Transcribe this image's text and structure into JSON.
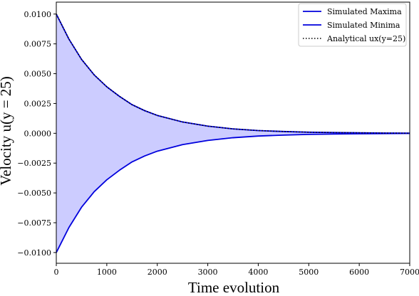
{
  "chart_data": {
    "type": "line",
    "xlabel": "Time evolution",
    "ylabel": "Velocity u(y = 25)",
    "xlim": [
      0,
      7000
    ],
    "ylim": [
      -0.0109,
      0.011
    ],
    "x_ticks": [
      0,
      1000,
      2000,
      3000,
      4000,
      5000,
      6000,
      7000
    ],
    "x_tick_labels": [
      "0",
      "1000",
      "2000",
      "3000",
      "4000",
      "5000",
      "6000",
      "7000"
    ],
    "y_ticks": [
      -0.01,
      -0.0075,
      -0.005,
      -0.0025,
      0,
      0.0025,
      0.005,
      0.0075,
      0.01
    ],
    "y_tick_labels": [
      "−0.0100",
      "−0.0075",
      "−0.0050",
      "−0.0025",
      "0.0000",
      "0.0025",
      "0.0050",
      "0.0075",
      "0.0100"
    ],
    "grid": false,
    "legend_position": "top-right",
    "fill_between": {
      "upper": "Simulated Maxima",
      "lower": "Simulated Minima",
      "color": "#ccccff"
    },
    "series": [
      {
        "name": "Simulated Maxima",
        "color": "#0000dd",
        "style": "solid",
        "x": [
          0,
          250,
          500,
          750,
          1000,
          1250,
          1500,
          1750,
          2000,
          2500,
          3000,
          3500,
          4000,
          4500,
          5000,
          5500,
          6000,
          6500,
          7000
        ],
        "values": [
          0.01,
          0.0079,
          0.0062,
          0.0049,
          0.0039,
          0.0031,
          0.0024,
          0.0019,
          0.0015,
          0.00095,
          0.0006,
          0.00037,
          0.00023,
          0.00015,
          9e-05,
          6e-05,
          4e-05,
          2e-05,
          1e-05
        ]
      },
      {
        "name": "Simulated Minima",
        "color": "#0000dd",
        "style": "solid",
        "x": [
          0,
          250,
          500,
          750,
          1000,
          1250,
          1500,
          1750,
          2000,
          2500,
          3000,
          3500,
          4000,
          4500,
          5000,
          5500,
          6000,
          6500,
          7000
        ],
        "values": [
          -0.01,
          -0.0079,
          -0.0062,
          -0.0049,
          -0.0039,
          -0.0031,
          -0.0024,
          -0.0019,
          -0.0015,
          -0.00095,
          -0.0006,
          -0.00037,
          -0.00023,
          -0.00015,
          -9e-05,
          -6e-05,
          -4e-05,
          -2e-05,
          -1e-05
        ]
      },
      {
        "name": "Analytical ux(y=25)",
        "color": "#000000",
        "style": "dotted",
        "x": [
          0,
          250,
          500,
          750,
          1000,
          1250,
          1500,
          1750,
          2000,
          2500,
          3000,
          3500,
          4000,
          4500,
          5000,
          5500,
          6000,
          6500,
          7000
        ],
        "values": [
          0.01,
          0.0079,
          0.0062,
          0.0049,
          0.0039,
          0.0031,
          0.0024,
          0.0019,
          0.0015,
          0.00095,
          0.0006,
          0.00037,
          0.00023,
          0.00015,
          9e-05,
          6e-05,
          4e-05,
          2e-05,
          1e-05
        ]
      }
    ]
  }
}
